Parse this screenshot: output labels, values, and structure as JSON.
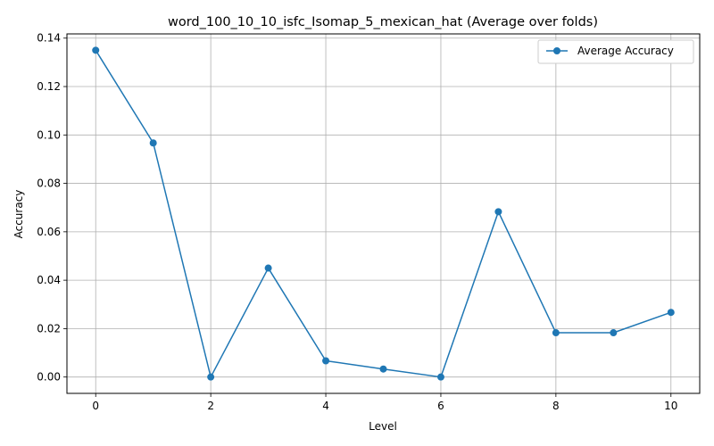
{
  "chart_data": {
    "type": "line",
    "title": "word_100_10_10_isfc_Isomap_5_mexican_hat (Average over folds)",
    "xlabel": "Level",
    "ylabel": "Accuracy",
    "x": [
      0,
      1,
      2,
      3,
      4,
      5,
      6,
      7,
      8,
      9,
      10
    ],
    "series": [
      {
        "name": "Average Accuracy",
        "values": [
          0.135,
          0.0967,
          0.0,
          0.045,
          0.0067,
          0.0033,
          0.0,
          0.0683,
          0.0183,
          0.0183,
          0.0267
        ],
        "color": "#1f77b4",
        "marker": "circle"
      }
    ],
    "xlim": [
      -0.5,
      10.5
    ],
    "ylim": [
      -0.00675,
      0.14175
    ],
    "xticks": [
      0,
      2,
      4,
      6,
      8,
      10
    ],
    "xtick_labels": [
      "0",
      "2",
      "4",
      "6",
      "8",
      "10"
    ],
    "yticks": [
      0.0,
      0.02,
      0.04,
      0.06,
      0.08,
      0.1,
      0.12,
      0.14
    ],
    "ytick_labels": [
      "0.00",
      "0.02",
      "0.04",
      "0.06",
      "0.08",
      "0.10",
      "0.12",
      "0.14"
    ],
    "grid": true,
    "legend_position": "top-right"
  }
}
